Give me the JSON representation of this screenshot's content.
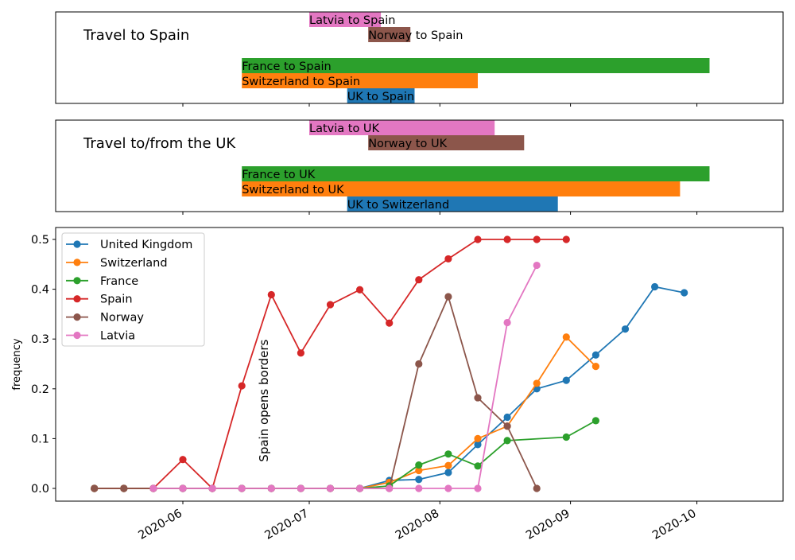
{
  "chart_data": [
    {
      "type": "gantt",
      "title": "Travel to Spain",
      "x_axis": "date",
      "bars": [
        {
          "label": "Latvia to Spain",
          "start": "2020-07-01",
          "end": "2020-07-18",
          "color": "#e377c2"
        },
        {
          "label": "Norway to Spain",
          "start": "2020-07-15",
          "end": "2020-07-25",
          "color": "#8c564b"
        },
        {
          "label": "France to Spain",
          "start": "2020-06-15",
          "end": "2020-10-04",
          "color": "#2ca02c"
        },
        {
          "label": "Switzerland to Spain",
          "start": "2020-06-15",
          "end": "2020-08-10",
          "color": "#ff7f0e"
        },
        {
          "label": "UK to Spain",
          "start": "2020-07-10",
          "end": "2020-07-26",
          "color": "#1f77b4"
        }
      ]
    },
    {
      "type": "gantt",
      "title": "Travel to/from the UK",
      "x_axis": "date",
      "bars": [
        {
          "label": "Latvia to UK",
          "start": "2020-07-01",
          "end": "2020-08-14",
          "color": "#e377c2"
        },
        {
          "label": "Norway to UK",
          "start": "2020-07-15",
          "end": "2020-08-21",
          "color": "#8c564b"
        },
        {
          "label": "France to UK",
          "start": "2020-06-15",
          "end": "2020-10-04",
          "color": "#2ca02c"
        },
        {
          "label": "Switzerland to UK",
          "start": "2020-06-15",
          "end": "2020-09-27",
          "color": "#ff7f0e"
        },
        {
          "label": "UK to Switzerland",
          "start": "2020-07-10",
          "end": "2020-08-29",
          "color": "#1f77b4"
        }
      ]
    },
    {
      "type": "line",
      "ylabel": "frequency",
      "ylim": [
        -0.025,
        0.525
      ],
      "y_ticks": [
        "0.0",
        "0.1",
        "0.2",
        "0.3",
        "0.4",
        "0.5"
      ],
      "x_ticks": [
        "2020-06",
        "2020-07",
        "2020-08",
        "2020-09",
        "2020-10"
      ],
      "legend_position": "upper-left",
      "annotation": {
        "text": "Spain opens borders",
        "date": "2020-06-21",
        "y": 0.05
      },
      "series": [
        {
          "name": "United Kingdom",
          "color": "#1f77b4",
          "points": [
            [
              "2020-05-11",
              0
            ],
            [
              "2020-05-18",
              0
            ],
            [
              "2020-05-25",
              0
            ],
            [
              "2020-06-01",
              0
            ],
            [
              "2020-06-08",
              0
            ],
            [
              "2020-06-15",
              0
            ],
            [
              "2020-06-22",
              0
            ],
            [
              "2020-06-29",
              0
            ],
            [
              "2020-07-06",
              0
            ],
            [
              "2020-07-13",
              0
            ],
            [
              "2020-07-20",
              0.016
            ],
            [
              "2020-07-27",
              0.018
            ],
            [
              "2020-08-03",
              0.032
            ],
            [
              "2020-08-10",
              0.088
            ],
            [
              "2020-08-17",
              0.143
            ],
            [
              "2020-08-24",
              0.2
            ],
            [
              "2020-08-31",
              0.217
            ],
            [
              "2020-09-07",
              0.268
            ],
            [
              "2020-09-14",
              0.32
            ],
            [
              "2020-09-21",
              0.405
            ],
            [
              "2020-09-28",
              0.393
            ]
          ]
        },
        {
          "name": "Switzerland",
          "color": "#ff7f0e",
          "points": [
            [
              "2020-05-11",
              0
            ],
            [
              "2020-05-18",
              0
            ],
            [
              "2020-05-25",
              0
            ],
            [
              "2020-06-01",
              0
            ],
            [
              "2020-06-08",
              0
            ],
            [
              "2020-06-15",
              0
            ],
            [
              "2020-06-22",
              0
            ],
            [
              "2020-06-29",
              0
            ],
            [
              "2020-07-06",
              0
            ],
            [
              "2020-07-13",
              0
            ],
            [
              "2020-07-20",
              0.012
            ],
            [
              "2020-07-27",
              0.036
            ],
            [
              "2020-08-03",
              0.046
            ],
            [
              "2020-08-10",
              0.1
            ],
            [
              "2020-08-17",
              0.125
            ],
            [
              "2020-08-24",
              0.211
            ],
            [
              "2020-08-31",
              0.304
            ],
            [
              "2020-09-07",
              0.245
            ]
          ]
        },
        {
          "name": "France",
          "color": "#2ca02c",
          "points": [
            [
              "2020-05-11",
              0
            ],
            [
              "2020-05-18",
              0
            ],
            [
              "2020-05-25",
              0
            ],
            [
              "2020-06-01",
              0
            ],
            [
              "2020-06-08",
              0
            ],
            [
              "2020-06-15",
              0
            ],
            [
              "2020-06-22",
              0
            ],
            [
              "2020-06-29",
              0
            ],
            [
              "2020-07-06",
              0
            ],
            [
              "2020-07-13",
              0
            ],
            [
              "2020-07-20",
              0.005
            ],
            [
              "2020-07-27",
              0.047
            ],
            [
              "2020-08-03",
              0.069
            ],
            [
              "2020-08-10",
              0.045
            ],
            [
              "2020-08-17",
              0.096
            ],
            [
              "2020-08-31",
              0.103
            ],
            [
              "2020-09-07",
              0.136
            ]
          ]
        },
        {
          "name": "Spain",
          "color": "#d62728",
          "points": [
            [
              "2020-05-11",
              0
            ],
            [
              "2020-05-18",
              0
            ],
            [
              "2020-05-25",
              0
            ],
            [
              "2020-06-01",
              0.058
            ],
            [
              "2020-06-08",
              0
            ],
            [
              "2020-06-15",
              0.206
            ],
            [
              "2020-06-22",
              0.389
            ],
            [
              "2020-06-29",
              0.272
            ],
            [
              "2020-07-06",
              0.369
            ],
            [
              "2020-07-13",
              0.399
            ],
            [
              "2020-07-20",
              0.332
            ],
            [
              "2020-07-27",
              0.419
            ],
            [
              "2020-08-03",
              0.461
            ],
            [
              "2020-08-10",
              0.5
            ],
            [
              "2020-08-17",
              0.5
            ],
            [
              "2020-08-24",
              0.5
            ],
            [
              "2020-08-31",
              0.5
            ]
          ]
        },
        {
          "name": "Norway",
          "color": "#8c564b",
          "points": [
            [
              "2020-05-11",
              0
            ],
            [
              "2020-05-18",
              0
            ],
            [
              "2020-05-25",
              0
            ],
            [
              "2020-06-01",
              0
            ],
            [
              "2020-06-08",
              0
            ],
            [
              "2020-06-15",
              0
            ],
            [
              "2020-06-22",
              0
            ],
            [
              "2020-06-29",
              0
            ],
            [
              "2020-07-06",
              0
            ],
            [
              "2020-07-13",
              0
            ],
            [
              "2020-07-20",
              0
            ],
            [
              "2020-07-27",
              0.25
            ],
            [
              "2020-08-03",
              0.385
            ],
            [
              "2020-08-10",
              0.182
            ],
            [
              "2020-08-17",
              0.125
            ],
            [
              "2020-08-24",
              0
            ]
          ]
        },
        {
          "name": "Latvia",
          "color": "#e377c2",
          "points": [
            [
              "2020-05-25",
              0
            ],
            [
              "2020-06-01",
              0
            ],
            [
              "2020-06-08",
              0
            ],
            [
              "2020-06-15",
              0
            ],
            [
              "2020-06-22",
              0
            ],
            [
              "2020-06-29",
              0
            ],
            [
              "2020-07-06",
              0
            ],
            [
              "2020-07-13",
              0
            ],
            [
              "2020-07-20",
              0
            ],
            [
              "2020-07-27",
              0
            ],
            [
              "2020-08-03",
              0
            ],
            [
              "2020-08-10",
              0
            ],
            [
              "2020-08-17",
              0.333
            ],
            [
              "2020-08-24",
              0.448
            ]
          ]
        }
      ]
    }
  ]
}
